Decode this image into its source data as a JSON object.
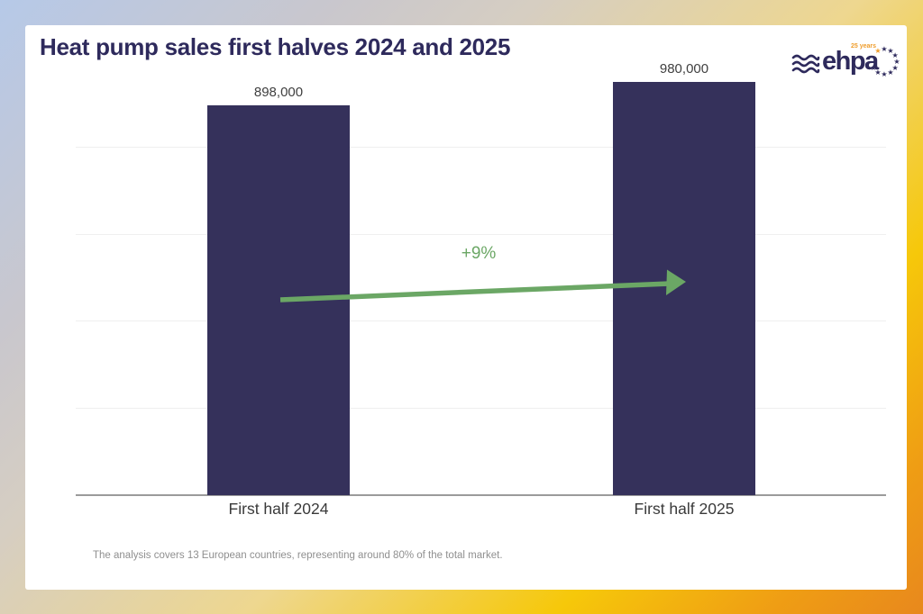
{
  "title": "Heat pump sales first halves 2024 and 2025",
  "logo": {
    "text": "ehpa",
    "years_badge": "25 years"
  },
  "chart_data": {
    "type": "bar",
    "title": "Heat pump sales first halves 2024 and 2025",
    "categories": [
      "First half 2024",
      "First half 2025"
    ],
    "values": [
      898000,
      980000
    ],
    "value_labels": [
      "898,000",
      "980,000"
    ],
    "change_annotation": "+9%",
    "ylim": [
      0,
      1000000
    ],
    "gridline_values": [
      200000,
      400000,
      600000,
      800000
    ],
    "grid": "horizontal-faint",
    "legend": "none",
    "xlabel": "",
    "ylabel": ""
  },
  "footnote": "The analysis covers 13 European countries, representing around 80% of the total market.",
  "colors": {
    "bar": "#35315b",
    "title_navy": "#2e2a5c",
    "annotation_green": "#6ba765",
    "logo_accent_orange": "#ef9d2c",
    "background_blue": "#b6c9e8",
    "background_gold": "#f6c80a",
    "background_orange": "#e8881d"
  }
}
